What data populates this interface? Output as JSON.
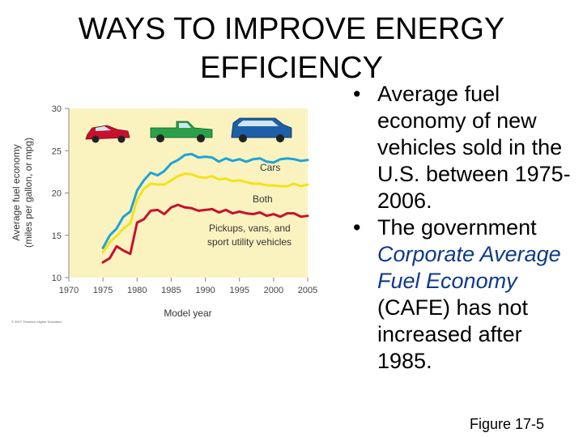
{
  "slide": {
    "title_line1": "WAYS TO IMPROVE ENERGY",
    "title_line2": "EFFICIENCY",
    "bullet_symbol": "•",
    "bullet1": "Average fuel economy of new vehicles sold in the U.S. between 1975-2006.",
    "bullet2_part1": "The government ",
    "bullet2_emph": "Corporate Average Fuel Economy",
    "bullet2_part2": " (CAFE) has not increased after 1985.",
    "figure_label": "Figure 17-5",
    "copyright": "© 2007 Thomson Higher Education"
  },
  "colors": {
    "plot_bg": "#faf3c0",
    "cars": "#1fa3d8",
    "both": "#f3e21b",
    "trucks": "#c8102e",
    "emphasis": "#0d3a8a"
  },
  "chart_data": {
    "type": "line",
    "title": "",
    "xlabel": "Model year",
    "ylabel": "Average fuel economy (miles per gallon, or mpg)",
    "xlim": [
      1970,
      2005
    ],
    "ylim": [
      10,
      30
    ],
    "x_ticks": [
      1970,
      1975,
      1980,
      1985,
      1990,
      1995,
      2000,
      2005
    ],
    "y_ticks": [
      10,
      15,
      20,
      25,
      30
    ],
    "series": [
      {
        "name": "Cars",
        "color": "#1fa3d8",
        "x": [
          1975,
          1976,
          1977,
          1978,
          1979,
          1980,
          1981,
          1982,
          1983,
          1984,
          1985,
          1986,
          1987,
          1988,
          1989,
          1990,
          1991,
          1992,
          1993,
          1994,
          1995,
          1996,
          1997,
          1998,
          1999,
          2000,
          2001,
          2002,
          2003,
          2004,
          2005
        ],
        "values": [
          13.5,
          15.0,
          15.8,
          17.2,
          17.8,
          20.3,
          21.5,
          22.4,
          22.1,
          22.6,
          23.5,
          23.9,
          24.5,
          24.6,
          24.2,
          24.3,
          24.2,
          23.7,
          24.1,
          23.8,
          24.0,
          23.7,
          24.0,
          24.1,
          23.7,
          23.6,
          24.0,
          24.1,
          24.0,
          23.8,
          23.9
        ]
      },
      {
        "name": "Both",
        "color": "#f3e21b",
        "x": [
          1975,
          1976,
          1977,
          1978,
          1979,
          1980,
          1981,
          1982,
          1983,
          1984,
          1985,
          1986,
          1987,
          1988,
          1989,
          1990,
          1991,
          1992,
          1993,
          1994,
          1995,
          1996,
          1997,
          1998,
          1999,
          2000,
          2001,
          2002,
          2003,
          2004,
          2005
        ],
        "values": [
          13.0,
          14.2,
          14.9,
          15.8,
          16.4,
          19.2,
          20.5,
          21.1,
          21.0,
          21.0,
          21.5,
          22.0,
          22.3,
          22.2,
          21.9,
          21.8,
          22.0,
          21.6,
          21.7,
          21.4,
          21.5,
          21.3,
          21.1,
          21.1,
          20.9,
          20.9,
          20.8,
          20.8,
          21.1,
          20.8,
          21.0
        ]
      },
      {
        "name": "Pickups, vans, and sport utility vehicles",
        "color": "#c8102e",
        "x": [
          1975,
          1976,
          1977,
          1978,
          1979,
          1980,
          1981,
          1982,
          1983,
          1984,
          1985,
          1986,
          1987,
          1988,
          1989,
          1990,
          1991,
          1992,
          1993,
          1994,
          1995,
          1996,
          1997,
          1998,
          1999,
          2000,
          2001,
          2002,
          2003,
          2004,
          2005
        ],
        "values": [
          11.8,
          12.3,
          13.7,
          13.2,
          12.8,
          16.5,
          16.9,
          17.9,
          18.0,
          17.5,
          18.3,
          18.6,
          18.3,
          18.2,
          17.9,
          18.0,
          18.1,
          17.7,
          18.0,
          17.6,
          17.8,
          17.6,
          17.5,
          17.7,
          17.3,
          17.5,
          17.2,
          17.6,
          17.6,
          17.2,
          17.3
        ]
      }
    ],
    "annotations": [
      "Cars",
      "Both",
      "Pickups, vans, and",
      "sport utility vehicles"
    ]
  }
}
